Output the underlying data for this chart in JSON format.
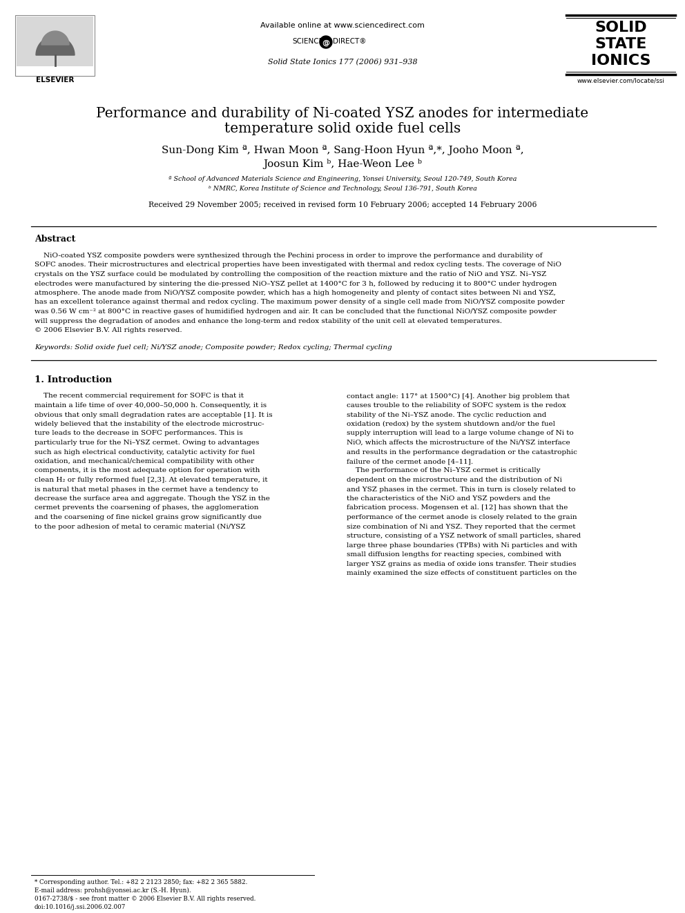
{
  "bg_color": "#ffffff",
  "title_line1": "Performance and durability of Ni-coated YSZ anodes for intermediate",
  "title_line2": "temperature solid oxide fuel cells",
  "authors_line1": "Sun-Dong Kim ª, Hwan Moon ª, Sang-Hoon Hyun ª,*, Jooho Moon ª,",
  "authors_line2": "Joosun Kim ᵇ, Hae-Weon Lee ᵇ",
  "affil1": "ª School of Advanced Materials Science and Engineering, Yonsei University, Seoul 120-749, South Korea",
  "affil2": "ᵇ NMRC, Korea Institute of Science and Technology, Seoul 136-791, South Korea",
  "received": "Received 29 November 2005; received in revised form 10 February 2006; accepted 14 February 2006",
  "abstract_title": "Abstract",
  "abstract_indent": "    NiO-coated YSZ composite powders were synthesized through the Pechini process in order to improve the performance and durability of SOFC anodes. Their microstructures and electrical properties have been investigated with thermal and redox cycling tests. The coverage of NiO crystals on the YSZ surface could be modulated by controlling the composition of the reaction mixture and the ratio of NiO and YSZ. Ni–YSZ electrodes were manufactured by sintering the die-pressed NiO–YSZ pellet at 1400°C for 3 h, followed by reducing it to 800°C under hydrogen atmosphere. The anode made from NiO/YSZ composite powder, which has a high homogeneity and plenty of contact sites between Ni and YSZ, has an excellent tolerance against thermal and redox cycling. The maximum power density of a single cell made from NiO/YSZ composite powder was 0.56 W cm⁻² at 800°C in reactive gases of humidified hydrogen and air. It can be concluded that the functional NiO/YSZ composite powder will suppress the degradation of anodes and enhance the long-term and redox stability of the unit cell at elevated temperatures.\n© 2006 Elsevier B.V. All rights reserved.",
  "keywords_italic": "Keywords:",
  "keywords_rest": " Solid oxide fuel cell; Ni/YSZ anode; Composite powder; Redox cycling; Thermal cycling",
  "section1_title": "1. Introduction",
  "intro_left_lines": [
    "    The recent commercial requirement for SOFC is that it",
    "maintain a life time of over 40,000–50,000 h. Consequently, it is",
    "obvious that only small degradation rates are acceptable [1]. It is",
    "widely believed that the instability of the electrode microstruc-",
    "ture leads to the decrease in SOFC performances. This is",
    "particularly true for the Ni–YSZ cermet. Owing to advantages",
    "such as high electrical conductivity, catalytic activity for fuel",
    "oxidation, and mechanical/chemical compatibility with other",
    "components, it is the most adequate option for operation with",
    "clean H₂ or fully reformed fuel [2,3]. At elevated temperature, it",
    "is natural that metal phases in the cermet have a tendency to",
    "decrease the surface area and aggregate. Though the YSZ in the",
    "cermet prevents the coarsening of phases, the agglomeration",
    "and the coarsening of fine nickel grains grow significantly due",
    "to the poor adhesion of metal to ceramic material (Ni/YSZ"
  ],
  "intro_right_lines": [
    "contact angle: 117° at 1500°C) [4]. Another big problem that",
    "causes trouble to the reliability of SOFC system is the redox",
    "stability of the Ni–YSZ anode. The cyclic reduction and",
    "oxidation (redox) by the system shutdown and/or the fuel",
    "supply interruption will lead to a large volume change of Ni to",
    "NiO, which affects the microstructure of the Ni/YSZ interface",
    "and results in the performance degradation or the catastrophic",
    "failure of the cermet anode [4–11].",
    "    The performance of the Ni–YSZ cermet is critically",
    "dependent on the microstructure and the distribution of Ni",
    "and YSZ phases in the cermet. This in turn is closely related to",
    "the characteristics of the NiO and YSZ powders and the",
    "fabrication process. Mogensen et al. [12] has shown that the",
    "performance of the cermet anode is closely related to the grain",
    "size combination of Ni and YSZ. They reported that the cermet",
    "structure, consisting of a YSZ network of small particles, shared",
    "large three phase boundaries (TPBs) with Ni particles and with",
    "small diffusion lengths for reacting species, combined with",
    "larger YSZ grains as media of oxide ions transfer. Their studies",
    "mainly examined the size effects of constituent particles on the"
  ],
  "footer1": "* Corresponding author. Tel.: +82 2 2123 2850; fax: +82 2 365 5882.",
  "footer2": "E-mail address: prohsh@yonsei.ac.kr (S.-H. Hyun).",
  "footer3": "0167-2738/$ - see front matter © 2006 Elsevier B.V. All rights reserved.",
  "footer4": "doi:10.1016/j.ssi.2006.02.007",
  "available_online": "Available online at www.sciencedirect.com",
  "journal_ref": "Solid State Ionics 177 (2006) 931–938",
  "journal_name": [
    "SOLID",
    "STATE",
    "IONICS"
  ],
  "journal_url": "www.elsevier.com/locate/ssi",
  "abstract_lines": [
    "    NiO-coated YSZ composite powders were synthesized through the Pechini process in order to improve the performance and durability of",
    "SOFC anodes. Their microstructures and electrical properties have been investigated with thermal and redox cycling tests. The coverage of NiO",
    "crystals on the YSZ surface could be modulated by controlling the composition of the reaction mixture and the ratio of NiO and YSZ. Ni–YSZ",
    "electrodes were manufactured by sintering the die-pressed NiO–YSZ pellet at 1400°C for 3 h, followed by reducing it to 800°C under hydrogen",
    "atmosphere. The anode made from NiO/YSZ composite powder, which has a high homogeneity and plenty of contact sites between Ni and YSZ,",
    "has an excellent tolerance against thermal and redox cycling. The maximum power density of a single cell made from NiO/YSZ composite powder",
    "was 0.56 W cm⁻² at 800°C in reactive gases of humidified hydrogen and air. It can be concluded that the functional NiO/YSZ composite powder",
    "will suppress the degradation of anodes and enhance the long-term and redox stability of the unit cell at elevated temperatures.",
    "© 2006 Elsevier B.V. All rights reserved."
  ]
}
